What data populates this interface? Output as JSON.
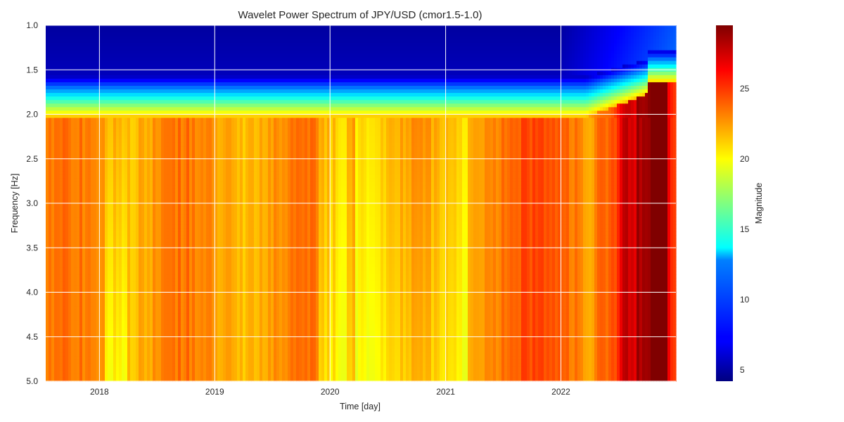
{
  "chart_data": {
    "type": "heatmap",
    "title": "Wavelet Power Spectrum of JPY/USD (cmor1.5-1.0)",
    "xlabel": "Time [day]",
    "ylabel": "Frequency [Hz]",
    "x_ticks": [
      "2018",
      "2019",
      "2020",
      "2021",
      "2022"
    ],
    "x_range": [
      "2017-07-15",
      "2022-12-31"
    ],
    "y_ticks": [
      "1.0",
      "1.5",
      "2.0",
      "2.5",
      "3.0",
      "3.5",
      "4.0",
      "4.5",
      "5.0"
    ],
    "ylim": [
      1.0,
      5.0
    ],
    "y_inverted": true,
    "grid": true,
    "colormap": "jet",
    "colorbar": {
      "label": "Magnitude",
      "ticks": [
        "5",
        "10",
        "15",
        "20",
        "25"
      ],
      "range": [
        4.2,
        29.5
      ]
    },
    "approx_values": {
      "low_band_1.0_to_1.6": 5,
      "transition_1.7_to_2.0": 14,
      "2017_to_2021_mid_band": 22.5,
      "2020_to_2021_high_freq": 20.5,
      "2022_late_peak": 29.5
    }
  }
}
